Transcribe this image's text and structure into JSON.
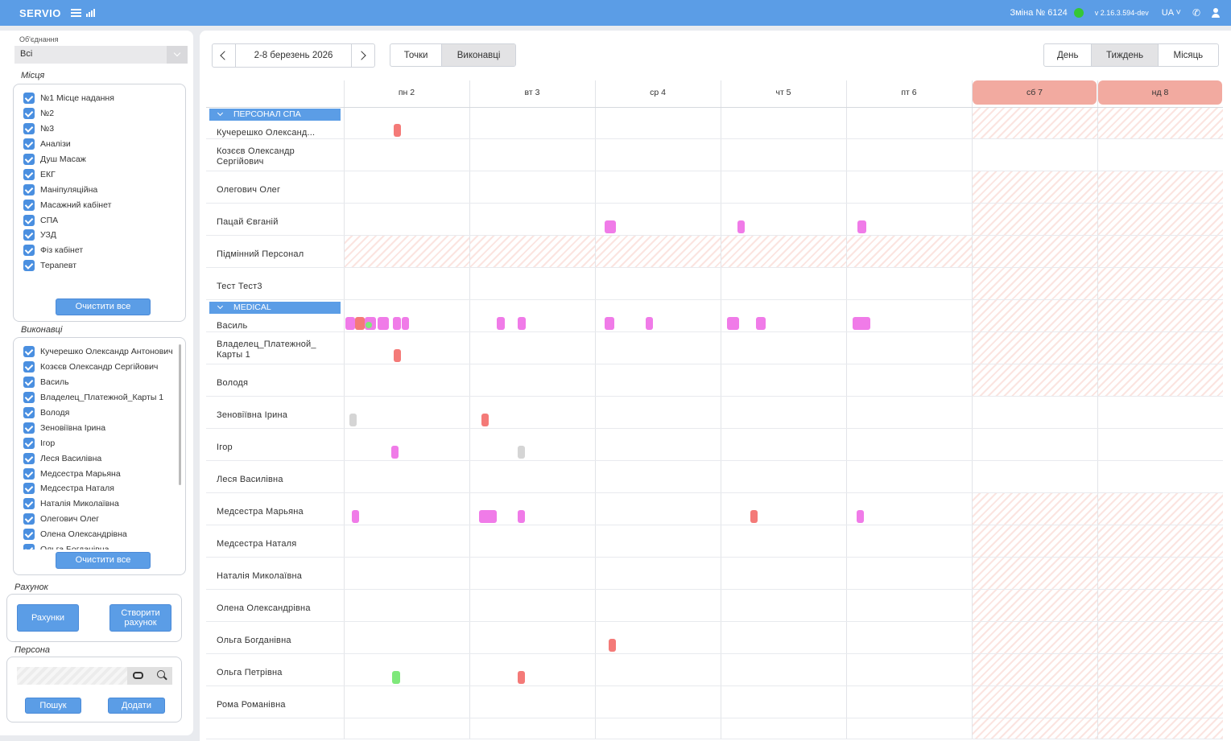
{
  "topbar": {
    "logo": "SERVIO",
    "shift": "Зміна  № 6124",
    "version": "v 2.16.3.594-dev",
    "lang": "UA",
    "shift_status_color": "#35c735"
  },
  "sidebar": {
    "association_label": "Об'єднання",
    "association_value": "Всі",
    "places_title": "Місця",
    "places": [
      "№1 Місце надання",
      "№2",
      "№3",
      "Аналізи",
      "Душ Масаж",
      "ЕКГ",
      "Маніпуляційна",
      "Масажний кабінет",
      "СПА",
      "УЗД",
      "Фіз кабінет",
      "Терапевт"
    ],
    "clear_all": "Очистити все",
    "performers_title": "Виконавці",
    "performers": [
      "Кучерешко Олександр Антонович",
      "Козєєв Олександр Сергійович",
      "Василь",
      "Владелец_Платежной_Карты 1",
      "Володя",
      "Зеновіївна Ірина",
      "Ігор",
      "Леся Василівна",
      "Медсестра Марьяна",
      "Медсестра Наталя",
      "Наталія Миколаївна",
      "Олегович Олег",
      "Олена Олександрівна",
      "Ольга Богданівна"
    ],
    "account_title": "Рахунок",
    "accounts_btn": "Рахунки",
    "create_account_btn": "Створити рахунок",
    "person_title": "Персона",
    "search_btn": "Пошук",
    "add_btn": "Додати"
  },
  "toolbar": {
    "date_range": "2-8 березень 2026",
    "mode_points": "Точки",
    "mode_performers": "Виконавці",
    "view_day": "День",
    "view_week": "Тиждень",
    "view_month": "Місяць"
  },
  "days": [
    "пн 2",
    "вт 3",
    "ср 4",
    "чт 5",
    "пт 6",
    "сб 7",
    "нд 8"
  ],
  "weekend_color": "#f2aaa0",
  "groups": [
    "ПЕРСОНАЛ СПА",
    "MEDICAL"
  ],
  "rows": [
    {
      "label": "Кучерешко Олександ..."
    },
    {
      "label": "Козєєв Олександр Сергійович"
    },
    {
      "label": "Олегович Олег"
    },
    {
      "label": "Пацай Євганій"
    },
    {
      "label": "Підмінний Персонал"
    },
    {
      "label": "Тест Тест3"
    },
    {
      "label": "Василь"
    },
    {
      "label": "Владелец_Платежной_ Карты 1"
    },
    {
      "label": "Володя"
    },
    {
      "label": "Зеновіївна Ірина"
    },
    {
      "label": "Ігор"
    },
    {
      "label": "Леся Василівна"
    },
    {
      "label": "Медсестра Марьяна"
    },
    {
      "label": "Медсестра Наталя"
    },
    {
      "label": "Наталія Миколаївна"
    },
    {
      "label": "Олена Олександрівна"
    },
    {
      "label": "Ольга Богданівна"
    },
    {
      "label": "Ольга Петрівна"
    },
    {
      "label": "Рома Романівна"
    }
  ],
  "event_colors": {
    "red": "#f47a78",
    "pink": "#f07be8",
    "green": "#7ee87a",
    "gray": "#d5d5d5"
  }
}
